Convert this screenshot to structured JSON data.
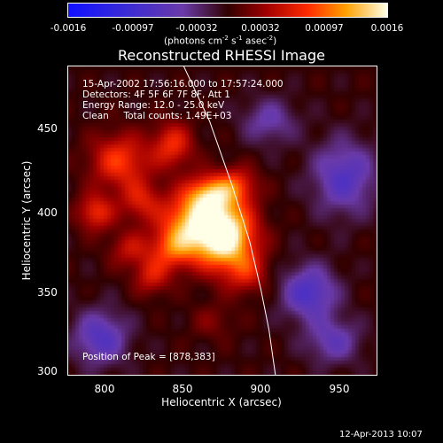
{
  "colorbar": {
    "ticks": [
      "-0.0016",
      "-0.00097",
      "-0.00032",
      "0.00032",
      "0.00097",
      "0.0016"
    ],
    "units_text": "(photons cm",
    "units_exp1": "-2",
    "units_mid": " s",
    "units_exp2": "-1",
    "units_mid2": " asec",
    "units_exp3": "-2",
    "units_end": ")"
  },
  "title": "Reconstructed RHESSI Image",
  "info": {
    "time_range": "15-Apr-2002 17:56:16.000 to 17:57:24.000",
    "detectors": "Detectors: 4F 5F 6F 7F 8F, Att 1",
    "energy": "Energy Range: 12.0 - 25.0 keV",
    "clean": "Clean     Total counts: 1.49E+03",
    "peak": "Position of Peak = [878,383]"
  },
  "axes": {
    "xlabel": "Heliocentric X (arcsec)",
    "ylabel": "Heliocentric Y (arcsec)",
    "xticks": [
      "800",
      "850",
      "900",
      "950"
    ],
    "yticks": [
      "450",
      "400",
      "350",
      "300"
    ]
  },
  "footer": "12-Apr-2013 10:07",
  "chart_data": {
    "type": "heatmap",
    "title": "Reconstructed RHESSI Image",
    "xlabel": "Heliocentric X (arcsec)",
    "ylabel": "Heliocentric Y (arcsec)",
    "xlim": [
      780,
      972
    ],
    "ylim": [
      297,
      489
    ],
    "colorbar_range": [
      -0.0016,
      0.0016
    ],
    "peak": [
      878,
      383
    ],
    "sources": [
      {
        "x": 878,
        "y": 383,
        "amp": 1.0,
        "sx": 13,
        "sy": 15
      },
      {
        "x": 858,
        "y": 392,
        "amp": 0.75,
        "sx": 14,
        "sy": 13
      },
      {
        "x": 868,
        "y": 410,
        "amp": 0.55,
        "sx": 10,
        "sy": 8
      },
      {
        "x": 845,
        "y": 375,
        "amp": 0.45,
        "sx": 10,
        "sy": 9
      },
      {
        "x": 812,
        "y": 430,
        "amp": 0.5,
        "sx": 13,
        "sy": 12
      },
      {
        "x": 797,
        "y": 398,
        "amp": 0.45,
        "sx": 8,
        "sy": 8
      },
      {
        "x": 825,
        "y": 405,
        "amp": 0.35,
        "sx": 9,
        "sy": 9
      },
      {
        "x": 845,
        "y": 440,
        "amp": 0.45,
        "sx": 9,
        "sy": 10
      },
      {
        "x": 832,
        "y": 358,
        "amp": 0.35,
        "sx": 8,
        "sy": 8
      },
      {
        "x": 818,
        "y": 375,
        "amp": 0.3,
        "sx": 9,
        "sy": 8
      },
      {
        "x": 885,
        "y": 415,
        "amp": 0.4,
        "sx": 9,
        "sy": 8
      },
      {
        "x": 892,
        "y": 360,
        "amp": 0.3,
        "sx": 9,
        "sy": 9
      },
      {
        "x": 930,
        "y": 348,
        "amp": -0.5,
        "sx": 12,
        "sy": 12
      },
      {
        "x": 800,
        "y": 320,
        "amp": -0.45,
        "sx": 12,
        "sy": 12
      },
      {
        "x": 952,
        "y": 420,
        "amp": -0.45,
        "sx": 14,
        "sy": 16
      },
      {
        "x": 905,
        "y": 455,
        "amp": -0.3,
        "sx": 12,
        "sy": 10
      },
      {
        "x": 945,
        "y": 318,
        "amp": -0.35,
        "sx": 12,
        "sy": 10
      },
      {
        "x": 870,
        "y": 330,
        "amp": 0.15,
        "sx": 10,
        "sy": 8
      }
    ],
    "limb_curve": [
      [
        852,
        489
      ],
      [
        868,
        455
      ],
      [
        882,
        415
      ],
      [
        893,
        380
      ],
      [
        900,
        350
      ],
      [
        905,
        325
      ],
      [
        909,
        297
      ]
    ]
  }
}
